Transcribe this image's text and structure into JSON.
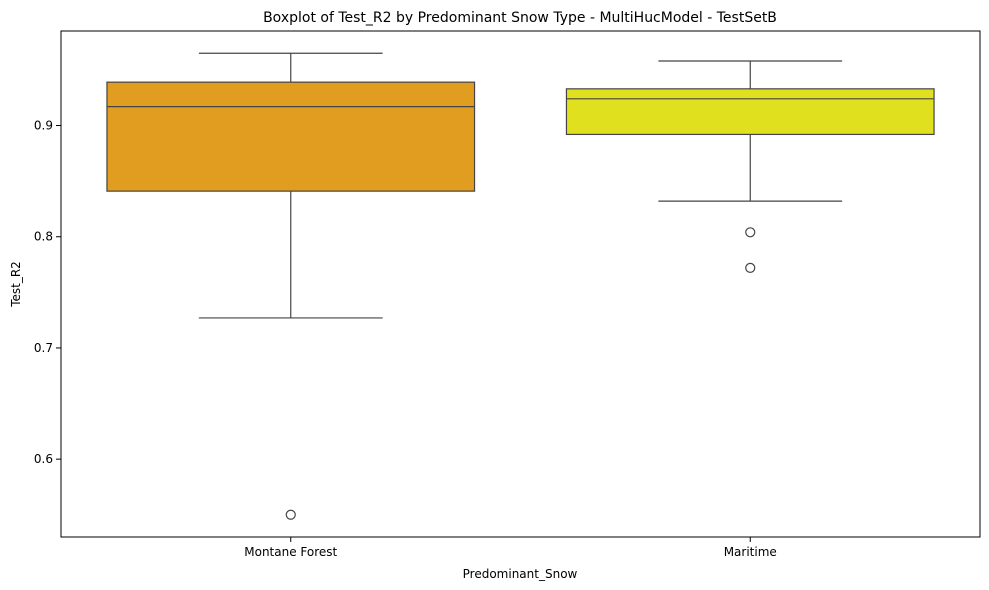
{
  "chart_data": {
    "type": "box",
    "title": "Boxplot of Test_R2 by Predominant Snow Type - MultiHucModel - TestSetB",
    "xlabel": "Predominant_Snow",
    "ylabel": "Test_R2",
    "ylim": [
      0.53,
      0.985
    ],
    "yticks": [
      0.6,
      0.7,
      0.8,
      0.9
    ],
    "grid": false,
    "categories": [
      "Montane Forest",
      "Maritime"
    ],
    "boxes": [
      {
        "category": "Montane Forest",
        "color": "#E09D20",
        "whisker_low": 0.727,
        "q1": 0.841,
        "median": 0.917,
        "q3": 0.939,
        "whisker_high": 0.965,
        "outliers": [
          0.55
        ]
      },
      {
        "category": "Maritime",
        "color": "#E0E01E",
        "whisker_low": 0.832,
        "q1": 0.892,
        "median": 0.924,
        "q3": 0.933,
        "whisker_high": 0.958,
        "outliers": [
          0.804,
          0.772
        ]
      }
    ]
  }
}
